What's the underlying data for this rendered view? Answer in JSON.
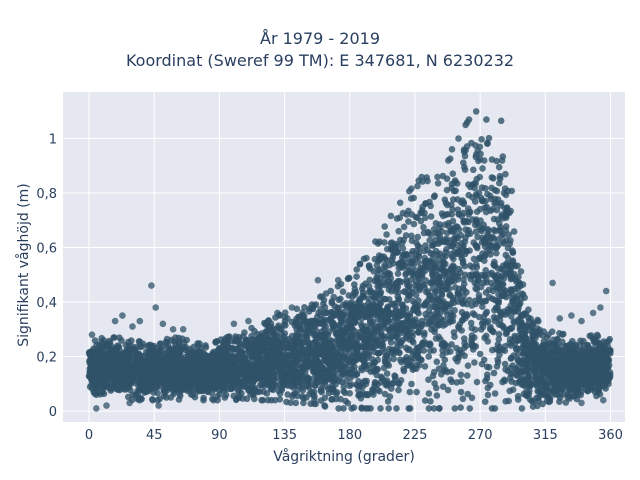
{
  "chart_data": {
    "type": "scatter",
    "title": "År 1979 - 2019",
    "subtitle": "Koordinat (Sweref 99 TM): E 347681, N 6230232",
    "xlabel": "Vågriktning (grader)",
    "ylabel": "Signifikant våghöjd (m)",
    "xlim": [
      -18,
      370
    ],
    "ylim": [
      -0.04,
      1.17
    ],
    "xticks": [
      0,
      45,
      90,
      135,
      180,
      225,
      270,
      315,
      360
    ],
    "xtick_labels": [
      "0",
      "45",
      "90",
      "135",
      "180",
      "225",
      "270",
      "315",
      "360"
    ],
    "yticks": [
      0,
      0.2,
      0.4,
      0.6,
      0.8,
      1
    ],
    "ytick_labels": [
      "0",
      "0,2",
      "0,4",
      "0,6",
      "0,8",
      "1"
    ],
    "grid": true,
    "marker_color": "#2f5269",
    "plot_background": "#e5e8f0",
    "envelope": {
      "direction": [
        0,
        10,
        20,
        30,
        40,
        50,
        60,
        70,
        80,
        90,
        100,
        110,
        120,
        130,
        140,
        150,
        160,
        170,
        180,
        190,
        200,
        210,
        220,
        230,
        240,
        250,
        260,
        265,
        270,
        275,
        280,
        285,
        290,
        295,
        300,
        310,
        320,
        330,
        340,
        350,
        360
      ],
      "height_min": [
        0.07,
        0.05,
        0.05,
        0.04,
        0.04,
        0.04,
        0.04,
        0.04,
        0.04,
        0.04,
        0.04,
        0.04,
        0.04,
        0.04,
        0.03,
        0.03,
        0.02,
        0.01,
        0.01,
        0.01,
        0.01,
        0.01,
        0.01,
        0.01,
        0.01,
        0.01,
        0.01,
        0.01,
        0.01,
        0.01,
        0.01,
        0.01,
        0.01,
        0.01,
        0.01,
        0.02,
        0.03,
        0.03,
        0.04,
        0.05,
        0.08
      ],
      "height_max": [
        0.25,
        0.27,
        0.27,
        0.26,
        0.25,
        0.26,
        0.27,
        0.26,
        0.24,
        0.26,
        0.28,
        0.3,
        0.32,
        0.35,
        0.37,
        0.4,
        0.42,
        0.45,
        0.49,
        0.56,
        0.64,
        0.73,
        0.8,
        0.86,
        0.92,
        0.98,
        1.05,
        1.09,
        1.11,
        1.12,
        1.11,
        1.06,
        0.92,
        0.62,
        0.45,
        0.33,
        0.29,
        0.28,
        0.27,
        0.28,
        0.27
      ]
    },
    "outliers": [
      {
        "x": 2,
        "y": 0.28
      },
      {
        "x": 18,
        "y": 0.33
      },
      {
        "x": 23,
        "y": 0.35
      },
      {
        "x": 30,
        "y": 0.31
      },
      {
        "x": 35,
        "y": 0.33
      },
      {
        "x": 43,
        "y": 0.46
      },
      {
        "x": 46,
        "y": 0.38
      },
      {
        "x": 51,
        "y": 0.32
      },
      {
        "x": 58,
        "y": 0.3
      },
      {
        "x": 65,
        "y": 0.3
      },
      {
        "x": 100,
        "y": 0.32
      },
      {
        "x": 110,
        "y": 0.33
      },
      {
        "x": 130,
        "y": 0.36
      },
      {
        "x": 140,
        "y": 0.38
      },
      {
        "x": 158,
        "y": 0.48
      },
      {
        "x": 172,
        "y": 0.48
      },
      {
        "x": 320,
        "y": 0.47
      },
      {
        "x": 325,
        "y": 0.34
      },
      {
        "x": 333,
        "y": 0.35
      },
      {
        "x": 340,
        "y": 0.33
      },
      {
        "x": 348,
        "y": 0.36
      },
      {
        "x": 353,
        "y": 0.38
      },
      {
        "x": 357,
        "y": 0.44
      },
      {
        "x": 5,
        "y": 0.01
      },
      {
        "x": 12,
        "y": 0.02
      },
      {
        "x": 28,
        "y": 0.03
      },
      {
        "x": 48,
        "y": 0.02
      },
      {
        "x": 340,
        "y": 0.03
      },
      {
        "x": 355,
        "y": 0.04
      }
    ]
  }
}
